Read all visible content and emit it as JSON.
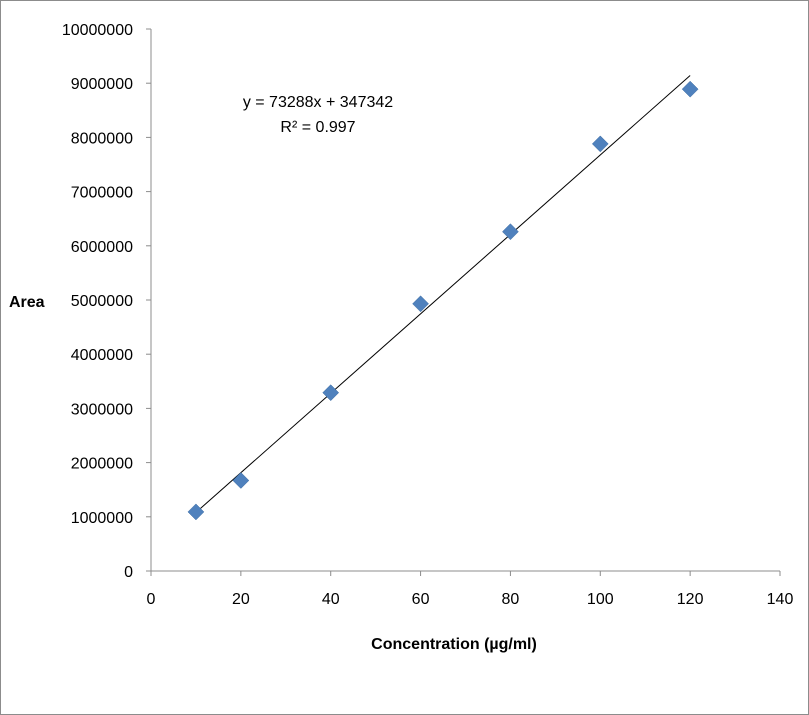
{
  "chart_data": {
    "type": "scatter",
    "title": "",
    "xlabel": "Concentration (µg/ml)",
    "ylabel": "Area",
    "xlim": [
      0,
      140
    ],
    "ylim": [
      0,
      10000000
    ],
    "x_ticks": [
      "0",
      "20",
      "40",
      "60",
      "80",
      "100",
      "120",
      "140"
    ],
    "y_ticks": [
      "0",
      "1000000",
      "2000000",
      "3000000",
      "4000000",
      "5000000",
      "6000000",
      "7000000",
      "8000000",
      "9000000",
      "10000000"
    ],
    "grid": false,
    "legend": "none",
    "series": [
      {
        "marker": "diamond",
        "color": "#4f81bd",
        "points": [
          {
            "x": 10,
            "y": 1090000
          },
          {
            "x": 20,
            "y": 1670000
          },
          {
            "x": 40,
            "y": 3290000
          },
          {
            "x": 60,
            "y": 4930000
          },
          {
            "x": 80,
            "y": 6260000
          },
          {
            "x": 100,
            "y": 7880000
          },
          {
            "x": 120,
            "y": 8890000
          }
        ]
      }
    ],
    "trendline": {
      "type": "linear",
      "slope": 73288,
      "intercept": 347342,
      "x_range": [
        10,
        120
      ],
      "color": "#000000",
      "equation": "y = 73288x + 347342",
      "r_squared": "R² = 0.997"
    }
  }
}
